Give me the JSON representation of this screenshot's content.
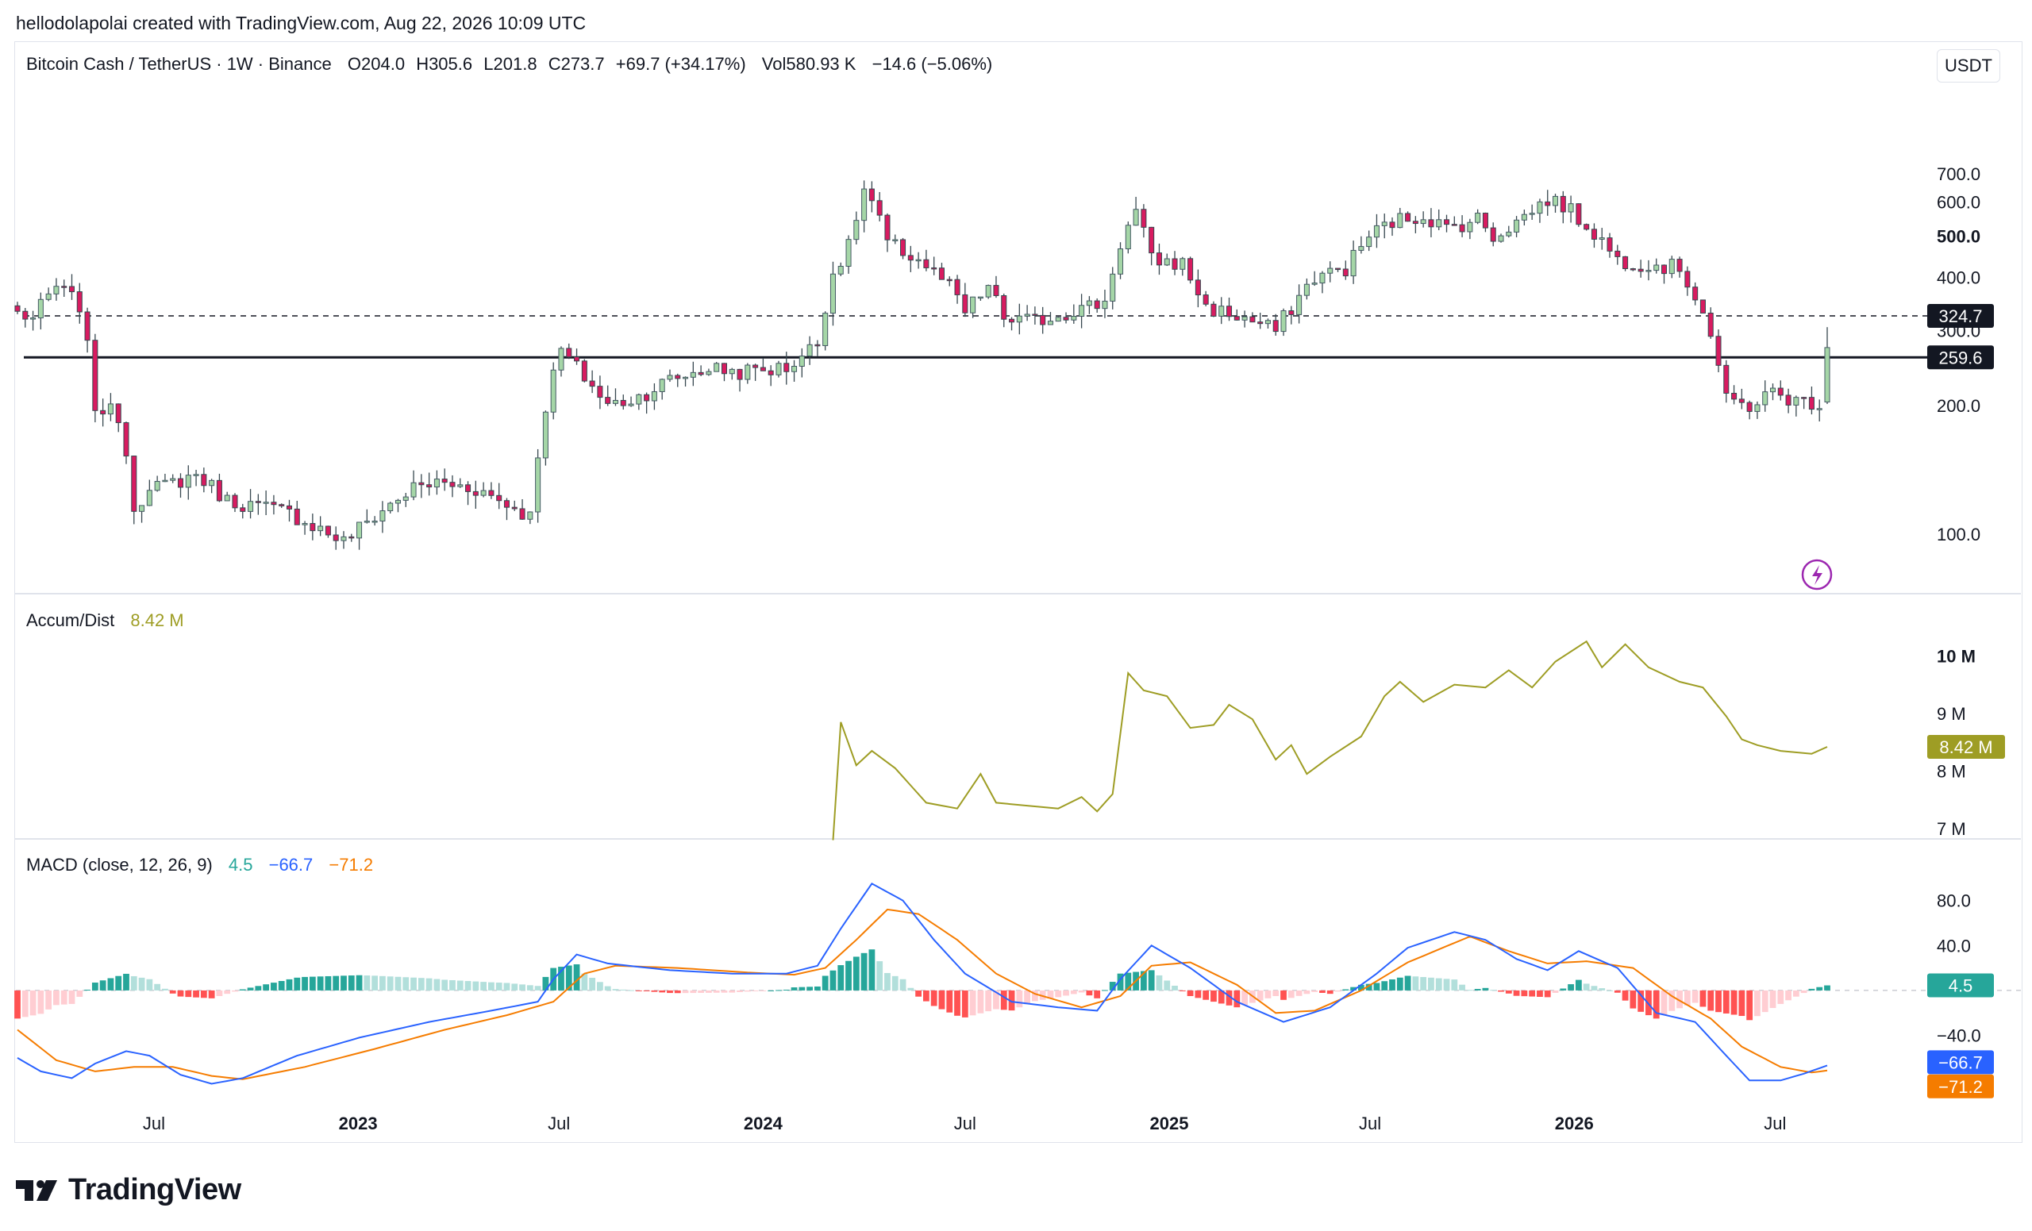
{
  "header": {
    "credit": "hellodolapolai created with TradingView.com, Aug 22, 2026 10:09 UTC"
  },
  "legend": {
    "symbol": "Bitcoin Cash / TetherUS · 1W · Binance",
    "open": "O204.0",
    "high": "H305.6",
    "low": "L201.8",
    "close": "C273.7",
    "change": "+69.7 (+34.17%)",
    "vol": "Vol580.93 K",
    "vol_change": "−14.6 (−5.06%)"
  },
  "currency_button": "USDT",
  "brand": {
    "name": "TradingView"
  },
  "colors": {
    "up": "#26a69a",
    "up_body": "#a5d6a7",
    "down": "#880e4f",
    "down_body": "#d81b60",
    "ad_line": "#9e9d24",
    "macd_line": "#2962ff",
    "signal_line": "#f57c00",
    "hist_pos_strong": "#26a69a",
    "hist_pos_weak": "#b2dfdb",
    "hist_neg_strong": "#ff5252",
    "hist_neg_weak": "#ffcdd2"
  },
  "chart_data": [
    {
      "type": "candlestick",
      "pane": "price",
      "scale": "log",
      "ylim": [
        75,
        920
      ],
      "y_ticks": [
        "100.0",
        "200.0",
        "300.0",
        "400.0",
        "500.0",
        "600.0",
        "700.0"
      ],
      "y_tick_values": [
        100,
        200,
        300,
        400,
        500,
        600,
        700
      ],
      "y_bold_tick": "500.0",
      "x_labels": [
        "Jul",
        "2023",
        "Jul",
        "2024",
        "Jul",
        "2025",
        "Jul",
        "2026",
        "Jul"
      ],
      "x_bold_labels": [
        "2023",
        "2024",
        "2025",
        "2026"
      ],
      "x_label_dates": [
        "2022-07-01",
        "2023-01-01",
        "2023-07-01",
        "2024-01-01",
        "2024-07-01",
        "2025-01-01",
        "2025-07-01",
        "2026-01-01",
        "2026-07-01"
      ],
      "date_range": [
        "2022-02-28",
        "2026-08-17"
      ],
      "horizontal_lines": [
        {
          "value": 324.7,
          "label": "324.7",
          "style": "dashed"
        },
        {
          "value": 259.6,
          "label": "259.6",
          "style": "solid"
        }
      ],
      "close_anchors": [
        [
          "2022-02-28",
          330
        ],
        [
          "2022-03-14",
          320
        ],
        [
          "2022-04-04",
          380
        ],
        [
          "2022-04-25",
          345
        ],
        [
          "2022-05-09",
          200
        ],
        [
          "2022-05-30",
          190
        ],
        [
          "2022-06-13",
          118
        ],
        [
          "2022-07-04",
          128
        ],
        [
          "2022-08-08",
          138
        ],
        [
          "2022-09-05",
          120
        ],
        [
          "2022-10-31",
          112
        ],
        [
          "2022-12-19",
          96
        ],
        [
          "2023-02-20",
          128
        ],
        [
          "2023-03-13",
          132
        ],
        [
          "2023-04-17",
          128
        ],
        [
          "2023-06-05",
          110
        ],
        [
          "2023-06-19",
          200
        ],
        [
          "2023-07-03",
          270
        ],
        [
          "2023-07-17",
          245
        ],
        [
          "2023-08-14",
          200
        ],
        [
          "2023-09-11",
          210
        ],
        [
          "2023-10-09",
          230
        ],
        [
          "2023-11-13",
          245
        ],
        [
          "2023-12-11",
          240
        ],
        [
          "2024-01-22",
          245
        ],
        [
          "2024-02-19",
          280
        ],
        [
          "2024-03-04",
          410
        ],
        [
          "2024-03-18",
          470
        ],
        [
          "2024-04-01",
          640
        ],
        [
          "2024-04-08",
          600
        ],
        [
          "2024-04-22",
          480
        ],
        [
          "2024-05-20",
          440
        ],
        [
          "2024-06-17",
          380
        ],
        [
          "2024-07-01",
          330
        ],
        [
          "2024-07-22",
          380
        ],
        [
          "2024-08-05",
          320
        ],
        [
          "2024-09-02",
          315
        ],
        [
          "2024-10-07",
          335
        ],
        [
          "2024-11-04",
          350
        ],
        [
          "2024-11-18",
          480
        ],
        [
          "2024-12-02",
          570
        ],
        [
          "2024-12-16",
          440
        ],
        [
          "2025-01-13",
          430
        ],
        [
          "2025-02-03",
          340
        ],
        [
          "2025-03-10",
          320
        ],
        [
          "2025-04-07",
          300
        ],
        [
          "2025-05-12",
          400
        ],
        [
          "2025-06-09",
          420
        ],
        [
          "2025-06-30",
          500
        ],
        [
          "2025-07-21",
          540
        ],
        [
          "2025-08-18",
          560
        ],
        [
          "2025-09-08",
          520
        ],
        [
          "2025-10-06",
          550
        ],
        [
          "2025-10-20",
          500
        ],
        [
          "2025-11-10",
          540
        ],
        [
          "2025-12-08",
          610
        ],
        [
          "2025-12-22",
          590
        ],
        [
          "2026-01-19",
          510
        ],
        [
          "2026-02-09",
          440
        ],
        [
          "2026-03-09",
          430
        ],
        [
          "2026-04-06",
          420
        ],
        [
          "2026-04-27",
          335
        ],
        [
          "2026-05-18",
          205
        ],
        [
          "2026-06-08",
          200
        ],
        [
          "2026-06-29",
          215
        ],
        [
          "2026-07-20",
          205
        ],
        [
          "2026-08-10",
          204
        ],
        [
          "2026-08-17",
          273.7
        ]
      ]
    },
    {
      "type": "line",
      "pane": "accum_dist",
      "title": "Accum/Dist",
      "current_value": "8.42 M",
      "current_value_num": 8.42,
      "ylim": [
        6.85,
        10.5
      ],
      "y_ticks": [
        "7 M",
        "8 M",
        "9 M",
        "10 M"
      ],
      "y_tick_values": [
        7,
        8,
        9,
        10
      ],
      "y_bold_tick": "10 M",
      "points": [
        [
          "2024-03-04",
          6.8
        ],
        [
          "2024-03-11",
          8.85
        ],
        [
          "2024-03-25",
          8.1
        ],
        [
          "2024-04-08",
          8.35
        ],
        [
          "2024-04-29",
          8.05
        ],
        [
          "2024-05-27",
          7.45
        ],
        [
          "2024-06-24",
          7.35
        ],
        [
          "2024-07-15",
          7.95
        ],
        [
          "2024-07-29",
          7.45
        ],
        [
          "2024-08-26",
          7.4
        ],
        [
          "2024-09-23",
          7.35
        ],
        [
          "2024-10-14",
          7.55
        ],
        [
          "2024-10-28",
          7.3
        ],
        [
          "2024-11-11",
          7.6
        ],
        [
          "2024-11-25",
          9.7
        ],
        [
          "2024-12-09",
          9.4
        ],
        [
          "2024-12-30",
          9.3
        ],
        [
          "2025-01-20",
          8.75
        ],
        [
          "2025-02-10",
          8.8
        ],
        [
          "2025-02-24",
          9.15
        ],
        [
          "2025-03-17",
          8.9
        ],
        [
          "2025-04-07",
          8.2
        ],
        [
          "2025-04-21",
          8.45
        ],
        [
          "2025-05-05",
          7.95
        ],
        [
          "2025-05-26",
          8.25
        ],
        [
          "2025-06-23",
          8.6
        ],
        [
          "2025-07-14",
          9.3
        ],
        [
          "2025-07-28",
          9.55
        ],
        [
          "2025-08-18",
          9.2
        ],
        [
          "2025-09-15",
          9.5
        ],
        [
          "2025-10-13",
          9.45
        ],
        [
          "2025-11-03",
          9.75
        ],
        [
          "2025-11-24",
          9.45
        ],
        [
          "2025-12-15",
          9.9
        ],
        [
          "2026-01-12",
          10.25
        ],
        [
          "2026-01-26",
          9.8
        ],
        [
          "2026-02-16",
          10.2
        ],
        [
          "2026-03-09",
          9.8
        ],
        [
          "2026-04-06",
          9.55
        ],
        [
          "2026-04-27",
          9.45
        ],
        [
          "2026-05-18",
          8.95
        ],
        [
          "2026-06-01",
          8.55
        ],
        [
          "2026-06-15",
          8.45
        ],
        [
          "2026-07-06",
          8.35
        ],
        [
          "2026-08-03",
          8.3
        ],
        [
          "2026-08-17",
          8.42
        ]
      ]
    },
    {
      "type": "macd",
      "pane": "macd",
      "title": "MACD (close, 12, 26, 9)",
      "values_text": {
        "histogram": "4.5",
        "macd": "−66.7",
        "signal": "−71.2"
      },
      "ylim": [
        -125,
        115
      ],
      "y_ticks": [
        "−40.0",
        "0",
        "40.0",
        "80.0"
      ],
      "y_tick_values": [
        -40,
        0,
        40,
        80
      ],
      "y_tick_labels_visible": [
        "−40.0",
        "40.0",
        "80.0"
      ],
      "macd_anchors": [
        [
          "2022-02-28",
          -60
        ],
        [
          "2022-03-21",
          -72
        ],
        [
          "2022-04-18",
          -78
        ],
        [
          "2022-05-09",
          -65
        ],
        [
          "2022-06-06",
          -54
        ],
        [
          "2022-06-27",
          -58
        ],
        [
          "2022-07-25",
          -75
        ],
        [
          "2022-08-22",
          -83
        ],
        [
          "2022-09-19",
          -78
        ],
        [
          "2022-11-07",
          -58
        ],
        [
          "2023-01-02",
          -42
        ],
        [
          "2023-03-06",
          -28
        ],
        [
          "2023-05-01",
          -18
        ],
        [
          "2023-06-12",
          -10
        ],
        [
          "2023-06-26",
          10
        ],
        [
          "2023-07-17",
          32
        ],
        [
          "2023-08-14",
          24
        ],
        [
          "2023-10-09",
          18
        ],
        [
          "2023-12-04",
          15
        ],
        [
          "2024-01-22",
          15
        ],
        [
          "2024-02-19",
          22
        ],
        [
          "2024-03-11",
          55
        ],
        [
          "2024-04-08",
          95
        ],
        [
          "2024-05-06",
          80
        ],
        [
          "2024-06-03",
          45
        ],
        [
          "2024-07-01",
          15
        ],
        [
          "2024-08-12",
          -10
        ],
        [
          "2024-09-23",
          -15
        ],
        [
          "2024-10-28",
          -18
        ],
        [
          "2024-11-18",
          10
        ],
        [
          "2024-12-16",
          40
        ],
        [
          "2025-01-20",
          20
        ],
        [
          "2025-03-03",
          -10
        ],
        [
          "2025-04-14",
          -28
        ],
        [
          "2025-05-26",
          -15
        ],
        [
          "2025-07-07",
          15
        ],
        [
          "2025-08-04",
          38
        ],
        [
          "2025-09-15",
          52
        ],
        [
          "2025-10-13",
          45
        ],
        [
          "2025-11-10",
          28
        ],
        [
          "2025-12-08",
          18
        ],
        [
          "2026-01-05",
          35
        ],
        [
          "2026-02-09",
          20
        ],
        [
          "2026-03-16",
          -20
        ],
        [
          "2026-04-20",
          -28
        ],
        [
          "2026-05-18",
          -58
        ],
        [
          "2026-06-08",
          -80
        ],
        [
          "2026-07-06",
          -80
        ],
        [
          "2026-07-27",
          -74
        ],
        [
          "2026-08-17",
          -66.7
        ]
      ],
      "signal_anchors": [
        [
          "2022-02-28",
          -35
        ],
        [
          "2022-04-04",
          -62
        ],
        [
          "2022-05-09",
          -72
        ],
        [
          "2022-06-13",
          -68
        ],
        [
          "2022-07-18",
          -68
        ],
        [
          "2022-08-22",
          -76
        ],
        [
          "2022-09-19",
          -79
        ],
        [
          "2022-11-14",
          -68
        ],
        [
          "2023-01-16",
          -52
        ],
        [
          "2023-03-20",
          -35
        ],
        [
          "2023-05-15",
          -22
        ],
        [
          "2023-06-26",
          -10
        ],
        [
          "2023-07-24",
          15
        ],
        [
          "2023-08-21",
          22
        ],
        [
          "2023-10-16",
          20
        ],
        [
          "2023-12-18",
          16
        ],
        [
          "2024-01-29",
          14
        ],
        [
          "2024-02-26",
          20
        ],
        [
          "2024-03-25",
          45
        ],
        [
          "2024-04-22",
          72
        ],
        [
          "2024-05-20",
          68
        ],
        [
          "2024-06-24",
          45
        ],
        [
          "2024-07-29",
          15
        ],
        [
          "2024-09-02",
          -3
        ],
        [
          "2024-10-14",
          -15
        ],
        [
          "2024-11-18",
          -5
        ],
        [
          "2024-12-16",
          22
        ],
        [
          "2025-01-20",
          25
        ],
        [
          "2025-03-03",
          5
        ],
        [
          "2025-04-07",
          -20
        ],
        [
          "2025-05-12",
          -18
        ],
        [
          "2025-06-23",
          0
        ],
        [
          "2025-08-04",
          25
        ],
        [
          "2025-09-29",
          48
        ],
        [
          "2025-11-03",
          35
        ],
        [
          "2025-12-08",
          24
        ],
        [
          "2026-01-12",
          26
        ],
        [
          "2026-02-23",
          20
        ],
        [
          "2026-03-30",
          -5
        ],
        [
          "2026-05-04",
          -25
        ],
        [
          "2026-06-01",
          -50
        ],
        [
          "2026-07-06",
          -68
        ],
        [
          "2026-08-03",
          -73
        ],
        [
          "2026-08-17",
          -71.2
        ]
      ]
    }
  ]
}
